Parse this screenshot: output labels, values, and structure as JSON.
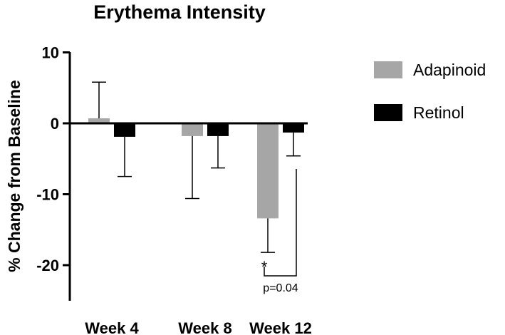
{
  "chart_data": {
    "type": "bar",
    "title": "Erythema Intensity",
    "xlabel": "",
    "ylabel": "% Change from Baseline",
    "categories": [
      "Week 4",
      "Week 8",
      "Week 12"
    ],
    "ylim": [
      -25,
      10
    ],
    "yticks": [
      10,
      0,
      -10,
      -20
    ],
    "ytick_labels": [
      "10",
      "0",
      "-10",
      "-20"
    ],
    "series": [
      {
        "name": "Adapinoid",
        "color": "#a6a6a6",
        "values": [
          0.7,
          -1.8,
          -13.4
        ],
        "error_low": [
          0,
          8.8,
          4.8
        ],
        "error_high": [
          5.1,
          0,
          0
        ]
      },
      {
        "name": "Retinol",
        "color": "#000000",
        "values": [
          -1.9,
          -1.8,
          -1.3
        ],
        "error_low": [
          5.6,
          4.5,
          3.3
        ],
        "error_high": [
          0,
          0,
          0
        ]
      }
    ],
    "legend_position": "top-right",
    "annotations": {
      "significance_marker": "*",
      "p_value_label": "p=0.04"
    }
  }
}
